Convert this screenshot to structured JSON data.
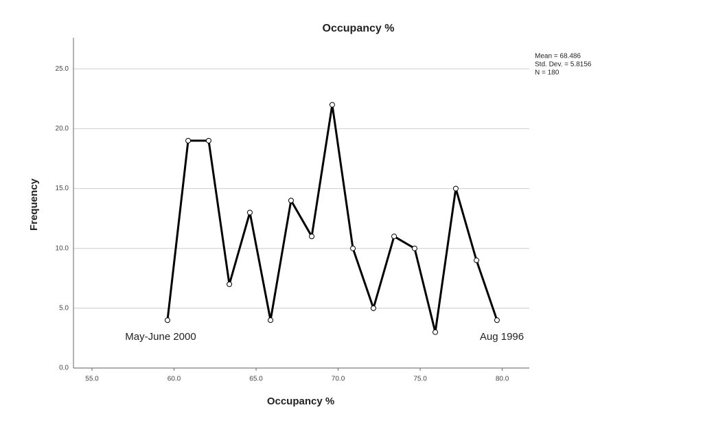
{
  "chart_data": {
    "type": "line",
    "title": "Occupancy %",
    "x_label": "Occupancy %",
    "y_label": "Frequency",
    "x": [
      59.6,
      60.86,
      62.11,
      63.37,
      64.62,
      65.88,
      67.13,
      68.39,
      69.64,
      70.9,
      72.15,
      73.41,
      74.66,
      75.92,
      77.17,
      78.43,
      79.68
    ],
    "series": [
      {
        "name": "Frequency",
        "color": "#000000",
        "values": [
          4,
          19,
          19,
          7,
          13,
          4,
          14,
          11,
          22,
          10,
          5,
          11,
          10,
          3,
          15,
          9,
          4
        ]
      }
    ],
    "xlim": [
      53.87,
      81.65
    ],
    "xticks": [
      {
        "value": 55,
        "label": "55.0"
      },
      {
        "value": 60,
        "label": "60.0"
      },
      {
        "value": 65,
        "label": "65.0"
      },
      {
        "value": 70,
        "label": "70.0"
      },
      {
        "value": 75,
        "label": "75.0"
      },
      {
        "value": 80,
        "label": "80.0"
      }
    ],
    "ylim": [
      0,
      27.6
    ],
    "yticks": [
      {
        "value": 0,
        "label": "0.0"
      },
      {
        "value": 5,
        "label": "5.0"
      },
      {
        "value": 10,
        "label": "10.0"
      },
      {
        "value": 15,
        "label": "15.0"
      },
      {
        "value": 20,
        "label": "20.0"
      },
      {
        "value": 25,
        "label": "25.0"
      }
    ],
    "grid": true,
    "annotations": [
      "May-June 2000",
      "Aug 1996"
    ],
    "stats": [
      "Mean = 68.486",
      "Std. Dev. = 5.8156",
      "N = 180"
    ]
  }
}
